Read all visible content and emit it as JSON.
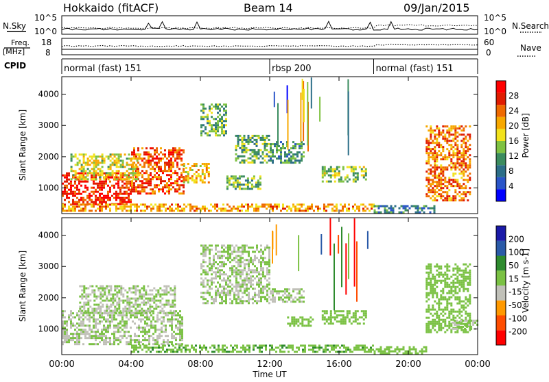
{
  "header": {
    "station": "Hokkaido (fitACF)",
    "beam": "Beam 14",
    "date": "09/Jan/2015"
  },
  "noise_panel": {
    "left_label": "N.Sky",
    "left_ticks": [
      "10^5",
      "10^0"
    ],
    "right_ticks": [
      "10^5",
      "10^0"
    ],
    "right_label": "N.Search"
  },
  "freq_panel": {
    "left_label_1": "Freq.",
    "left_label_2": "[MHz]",
    "left_ticks": [
      "18",
      "8"
    ],
    "right_ticks": [
      "60",
      "0"
    ],
    "right_label": "Nave"
  },
  "cpid_panel": {
    "label": "CPID",
    "segments": [
      {
        "name": "normal (fast) 151",
        "start_hour": 0,
        "end_hour": 12
      },
      {
        "name": "rbsp 200",
        "start_hour": 12,
        "end_hour": 18
      },
      {
        "name": "normal (fast) 151",
        "start_hour": 18,
        "end_hour": 24
      }
    ]
  },
  "colors": {
    "power": [
      "#0000ff",
      "#2a55c8",
      "#2c6e88",
      "#3b8c5f",
      "#7fc242",
      "#f2e21c",
      "#f7a800",
      "#ef6a00",
      "#e01c00",
      "#ff0000"
    ],
    "velocity": [
      "#ff0000",
      "#ff4d00",
      "#ff9900",
      "#c0c0b8",
      "#7ac143",
      "#2e8b2e",
      "#2a5aa8",
      "#1a1aa8"
    ]
  },
  "chart_data": [
    {
      "type": "heatmap",
      "title": "",
      "ylabel": "Slant Range [km]",
      "xlabel": "Time UT",
      "xlim": [
        0,
        24
      ],
      "ylim": [
        180,
        4560
      ],
      "xticks": [
        "00:00",
        "04:00",
        "08:00",
        "12:00",
        "16:00",
        "20:00",
        "00:00"
      ],
      "yticks": [
        "1000",
        "2000",
        "3000",
        "4000"
      ],
      "colorbar": {
        "label": "Power [dB]",
        "ticks": [
          "28",
          "24",
          "20",
          "16",
          "12",
          "8",
          "4"
        ],
        "range": [
          0,
          30
        ]
      },
      "regions": [
        {
          "t0": 0.0,
          "t1": 4.0,
          "r0": 500,
          "r1": 1500,
          "value": 26
        },
        {
          "t0": 4.0,
          "t1": 7.0,
          "r0": 800,
          "r1": 2300,
          "value": 24
        },
        {
          "t0": 0.5,
          "t1": 4.5,
          "r0": 1300,
          "r1": 2100,
          "value": 16
        },
        {
          "t0": 7.0,
          "t1": 8.5,
          "r0": 1200,
          "r1": 1800,
          "value": 18
        },
        {
          "t0": 8.0,
          "t1": 9.5,
          "r0": 2700,
          "r1": 3700,
          "value": 12
        },
        {
          "t0": 10.0,
          "t1": 12.0,
          "r0": 1800,
          "r1": 2700,
          "value": 12
        },
        {
          "t0": 12.0,
          "t1": 14.0,
          "r0": 1800,
          "r1": 2500,
          "value": 10
        },
        {
          "t0": 9.5,
          "t1": 11.5,
          "r0": 1000,
          "r1": 1400,
          "value": 12
        },
        {
          "t0": 15.0,
          "t1": 17.5,
          "r0": 1200,
          "r1": 1700,
          "value": 14
        },
        {
          "t0": 0.0,
          "t1": 18.0,
          "r0": 250,
          "r1": 500,
          "value": 20
        },
        {
          "t0": 18.0,
          "t1": 21.5,
          "r0": 250,
          "r1": 450,
          "value": 8
        },
        {
          "t0": 21.0,
          "t1": 23.5,
          "r0": 600,
          "r1": 3000,
          "value": 22
        }
      ]
    },
    {
      "type": "heatmap",
      "title": "",
      "ylabel": "Slant Range [km]",
      "xlabel": "Time UT",
      "xlim": [
        0,
        24
      ],
      "ylim": [
        180,
        4560
      ],
      "xticks": [
        "00:00",
        "04:00",
        "08:00",
        "12:00",
        "16:00",
        "20:00",
        "00:00"
      ],
      "yticks": [
        "1000",
        "2000",
        "3000",
        "4000"
      ],
      "colorbar": {
        "label": "Velocity [m s-1]",
        "ticks": [
          "200",
          "100",
          "50",
          "15",
          "-15",
          "-50",
          "-100",
          "-200"
        ],
        "range": [
          -250,
          250
        ]
      },
      "regions": [
        {
          "t0": 0.0,
          "t1": 7.0,
          "r0": 500,
          "r1": 1600,
          "value": 0
        },
        {
          "t0": 1.0,
          "t1": 6.5,
          "r0": 1500,
          "r1": 2400,
          "value": 0
        },
        {
          "t0": 8.0,
          "t1": 12.0,
          "r0": 1800,
          "r1": 3700,
          "value": 0
        },
        {
          "t0": 12.0,
          "t1": 14.0,
          "r0": 1900,
          "r1": 2300,
          "value": 0
        },
        {
          "t0": 13.0,
          "t1": 14.5,
          "r0": 1100,
          "r1": 1400,
          "value": 40
        },
        {
          "t0": 15.0,
          "t1": 17.5,
          "r0": 1200,
          "r1": 1600,
          "value": 30
        },
        {
          "t0": 4.0,
          "t1": 18.0,
          "r0": 250,
          "r1": 500,
          "value": 60
        },
        {
          "t0": 18.0,
          "t1": 21.0,
          "r0": 250,
          "r1": 450,
          "value": 40
        },
        {
          "t0": 21.0,
          "t1": 23.5,
          "r0": 900,
          "r1": 3100,
          "value": 30
        },
        {
          "t0": 22.5,
          "t1": 24.0,
          "r0": 1000,
          "r1": 1300,
          "value": 0
        }
      ]
    }
  ]
}
